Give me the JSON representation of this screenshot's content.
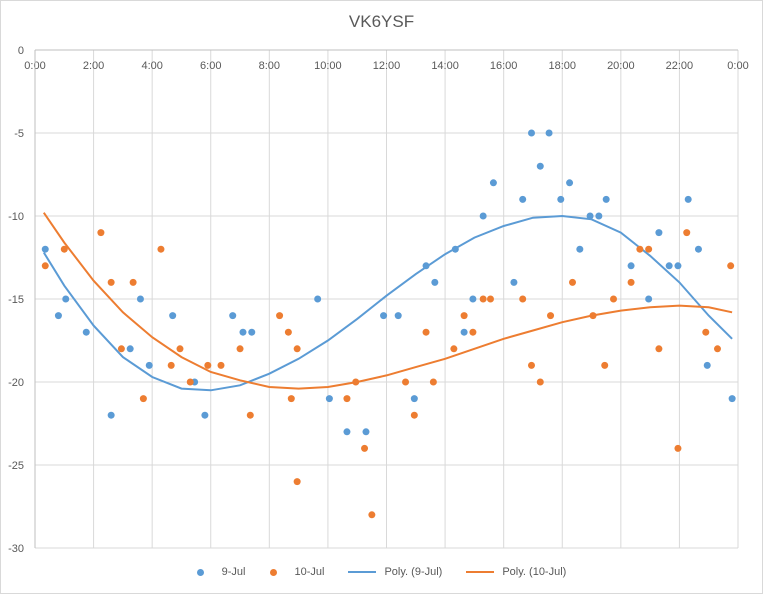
{
  "chart_data": {
    "type": "scatter",
    "title": "VK6YSF",
    "xlabel": "",
    "ylabel": "",
    "xlim": [
      0,
      24
    ],
    "ylim": [
      -30,
      0
    ],
    "x_tick_labels": [
      "0:00",
      "2:00",
      "4:00",
      "6:00",
      "8:00",
      "10:00",
      "12:00",
      "14:00",
      "16:00",
      "18:00",
      "20:00",
      "22:00",
      "0:00"
    ],
    "y_tick_labels": [
      "0",
      "-5",
      "-10",
      "-15",
      "-20",
      "-25",
      "-30"
    ],
    "y_ticks": [
      0,
      -5,
      -10,
      -15,
      -20,
      -25,
      -30
    ],
    "grid": true,
    "x_axis_position": "top",
    "legend_position": "bottom",
    "series": [
      {
        "name": "9-Jul",
        "kind": "points",
        "color": "#5b9bd5",
        "points": [
          [
            0.35,
            -12
          ],
          [
            0.8,
            -16
          ],
          [
            1.05,
            -15
          ],
          [
            1.75,
            -17
          ],
          [
            2.6,
            -22
          ],
          [
            3.25,
            -18
          ],
          [
            3.6,
            -15
          ],
          [
            3.9,
            -19
          ],
          [
            4.7,
            -16
          ],
          [
            5.45,
            -20
          ],
          [
            5.8,
            -22
          ],
          [
            6.75,
            -16
          ],
          [
            7.1,
            -17
          ],
          [
            7.4,
            -17
          ],
          [
            9.65,
            -15
          ],
          [
            10.05,
            -21
          ],
          [
            10.65,
            -23
          ],
          [
            11.3,
            -23
          ],
          [
            11.9,
            -16
          ],
          [
            12.4,
            -16
          ],
          [
            12.95,
            -21
          ],
          [
            13.35,
            -13
          ],
          [
            13.65,
            -14
          ],
          [
            14.35,
            -12
          ],
          [
            14.65,
            -17
          ],
          [
            14.95,
            -15
          ],
          [
            15.3,
            -10
          ],
          [
            15.65,
            -8
          ],
          [
            16.35,
            -14
          ],
          [
            16.65,
            -9
          ],
          [
            16.95,
            -5
          ],
          [
            17.25,
            -7
          ],
          [
            17.55,
            -5
          ],
          [
            17.95,
            -9
          ],
          [
            18.25,
            -8
          ],
          [
            18.6,
            -12
          ],
          [
            18.95,
            -10
          ],
          [
            19.25,
            -10
          ],
          [
            19.5,
            -9
          ],
          [
            20.35,
            -13
          ],
          [
            20.95,
            -15
          ],
          [
            21.3,
            -11
          ],
          [
            21.65,
            -13
          ],
          [
            21.95,
            -13
          ],
          [
            22.3,
            -9
          ],
          [
            22.65,
            -12
          ],
          [
            22.95,
            -19
          ],
          [
            23.8,
            -21
          ]
        ]
      },
      {
        "name": "10-Jul",
        "kind": "points",
        "color": "#ed7d31",
        "points": [
          [
            0.35,
            -13
          ],
          [
            1.0,
            -12
          ],
          [
            2.25,
            -11
          ],
          [
            2.6,
            -14
          ],
          [
            2.95,
            -18
          ],
          [
            3.35,
            -14
          ],
          [
            3.7,
            -21
          ],
          [
            4.3,
            -12
          ],
          [
            4.65,
            -19
          ],
          [
            4.95,
            -18
          ],
          [
            5.3,
            -20
          ],
          [
            5.9,
            -19
          ],
          [
            6.35,
            -19
          ],
          [
            7.0,
            -18
          ],
          [
            7.35,
            -22
          ],
          [
            8.35,
            -16
          ],
          [
            8.65,
            -17
          ],
          [
            8.75,
            -21
          ],
          [
            8.95,
            -18
          ],
          [
            8.95,
            -26
          ],
          [
            10.65,
            -21
          ],
          [
            10.95,
            -20
          ],
          [
            11.25,
            -24
          ],
          [
            11.5,
            -28
          ],
          [
            12.65,
            -20
          ],
          [
            12.95,
            -22
          ],
          [
            13.35,
            -17
          ],
          [
            13.6,
            -20
          ],
          [
            14.3,
            -18
          ],
          [
            14.65,
            -16
          ],
          [
            14.95,
            -17
          ],
          [
            15.3,
            -15
          ],
          [
            15.55,
            -15
          ],
          [
            16.65,
            -15
          ],
          [
            16.95,
            -19
          ],
          [
            17.25,
            -20
          ],
          [
            17.6,
            -16
          ],
          [
            18.35,
            -14
          ],
          [
            19.05,
            -16
          ],
          [
            19.45,
            -19
          ],
          [
            19.75,
            -15
          ],
          [
            20.35,
            -14
          ],
          [
            20.65,
            -12
          ],
          [
            20.95,
            -12
          ],
          [
            21.3,
            -18
          ],
          [
            21.95,
            -24
          ],
          [
            22.25,
            -11
          ],
          [
            22.9,
            -17
          ],
          [
            23.3,
            -18
          ],
          [
            23.75,
            -13
          ]
        ]
      },
      {
        "name": "Poly. (9-Jul)",
        "kind": "trendline",
        "color": "#5b9bd5",
        "points": [
          [
            0.3,
            -12.2
          ],
          [
            1,
            -14.2
          ],
          [
            2,
            -16.6
          ],
          [
            3,
            -18.5
          ],
          [
            4,
            -19.7
          ],
          [
            5,
            -20.4
          ],
          [
            6,
            -20.5
          ],
          [
            7,
            -20.2
          ],
          [
            8,
            -19.5
          ],
          [
            9,
            -18.6
          ],
          [
            10,
            -17.5
          ],
          [
            11,
            -16.2
          ],
          [
            12,
            -14.8
          ],
          [
            13,
            -13.5
          ],
          [
            14,
            -12.3
          ],
          [
            15,
            -11.3
          ],
          [
            16,
            -10.6
          ],
          [
            17,
            -10.1
          ],
          [
            18,
            -10.0
          ],
          [
            19,
            -10.2
          ],
          [
            20,
            -11.0
          ],
          [
            21,
            -12.4
          ],
          [
            22,
            -14.0
          ],
          [
            23,
            -16.0
          ],
          [
            23.8,
            -17.4
          ]
        ]
      },
      {
        "name": "Poly. (10-Jul)",
        "kind": "trendline",
        "color": "#ed7d31",
        "points": [
          [
            0.3,
            -9.8
          ],
          [
            1,
            -11.6
          ],
          [
            2,
            -13.9
          ],
          [
            3,
            -15.8
          ],
          [
            4,
            -17.3
          ],
          [
            5,
            -18.5
          ],
          [
            6,
            -19.4
          ],
          [
            7,
            -19.9
          ],
          [
            8,
            -20.3
          ],
          [
            9,
            -20.4
          ],
          [
            10,
            -20.3
          ],
          [
            11,
            -20.0
          ],
          [
            12,
            -19.6
          ],
          [
            13,
            -19.1
          ],
          [
            14,
            -18.6
          ],
          [
            15,
            -18.0
          ],
          [
            16,
            -17.4
          ],
          [
            17,
            -16.9
          ],
          [
            18,
            -16.4
          ],
          [
            19,
            -16.0
          ],
          [
            20,
            -15.7
          ],
          [
            21,
            -15.5
          ],
          [
            22,
            -15.4
          ],
          [
            23,
            -15.5
          ],
          [
            23.8,
            -15.8
          ]
        ]
      }
    ]
  },
  "legend": [
    {
      "label": "9-Jul",
      "kind": "dot",
      "color": "#5b9bd5"
    },
    {
      "label": "10-Jul",
      "kind": "dot",
      "color": "#ed7d31"
    },
    {
      "label": "Poly. (9-Jul)",
      "kind": "line",
      "color": "#5b9bd5"
    },
    {
      "label": "Poly. (10-Jul)",
      "kind": "line",
      "color": "#ed7d31"
    }
  ]
}
